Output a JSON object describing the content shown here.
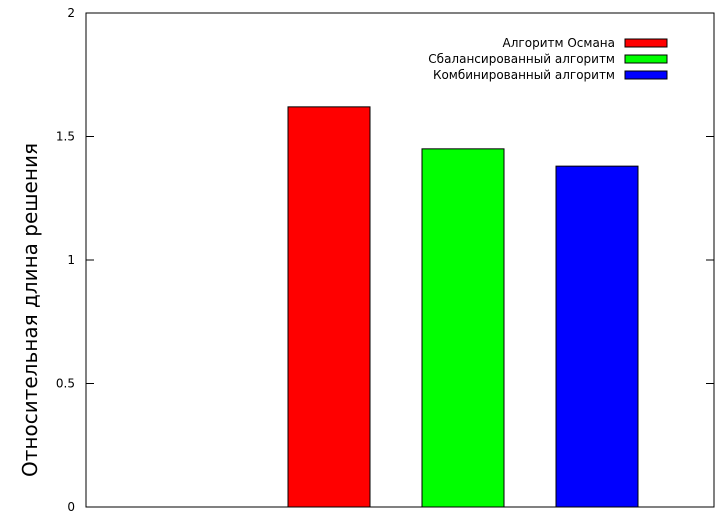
{
  "chart_data": {
    "type": "bar",
    "categories": [
      "",
      "",
      ""
    ],
    "series": [
      {
        "name": "Алгоритм Османа",
        "color": "#ff0000",
        "value": 1.62
      },
      {
        "name": "Сбалансированный алгоритм",
        "color": "#00ff00",
        "value": 1.45
      },
      {
        "name": "Комбинированный алгоритм",
        "color": "#0000ff",
        "value": 1.38
      }
    ],
    "ylabel": "Относительная длина решения",
    "ylim": [
      0,
      2
    ],
    "yticks": [
      {
        "value": 0,
        "label": "0"
      },
      {
        "value": 0.5,
        "label": "0.5"
      },
      {
        "value": 1,
        "label": "1"
      },
      {
        "value": 1.5,
        "label": "1.5"
      },
      {
        "value": 2,
        "label": "2"
      }
    ],
    "grid": false,
    "legend_position": "top-right"
  }
}
